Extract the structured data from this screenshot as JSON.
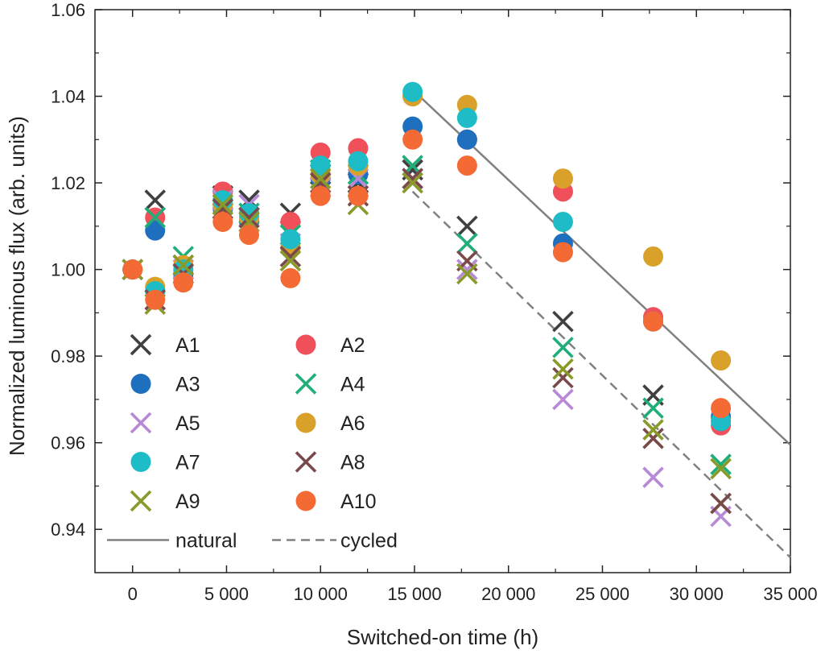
{
  "chart_data": {
    "type": "scatter",
    "title": "",
    "xlabel": "Switched-on time (h)",
    "ylabel": "Normalized luminous flux (arb. units)",
    "xlim": [
      -2000,
      35000
    ],
    "ylim": [
      0.93,
      1.06
    ],
    "x_ticks": [
      0,
      5000,
      10000,
      15000,
      20000,
      25000,
      30000,
      35000
    ],
    "x_tick_labels": [
      "0",
      "5 000",
      "10 000",
      "15 000",
      "20 000",
      "25 000",
      "30 000",
      "35 000"
    ],
    "y_ticks": [
      0.94,
      0.96,
      0.98,
      1.0,
      1.02,
      1.04,
      1.06
    ],
    "y_tick_labels": [
      "0.94",
      "0.96",
      "0.98",
      "1.00",
      "1.02",
      "1.04",
      "1.06"
    ],
    "grid": false,
    "legend_position": "bottom-left",
    "x": [
      0,
      1200,
      2700,
      4800,
      6200,
      8400,
      10000,
      12000,
      14900,
      17800,
      22900,
      27700,
      31300
    ],
    "series": [
      {
        "name": "A1",
        "marker": "x",
        "color": "#404040",
        "values": [
          1.0,
          1.016,
          1.001,
          1.017,
          1.016,
          1.013,
          1.022,
          1.02,
          1.023,
          1.01,
          0.988,
          0.971,
          0.946
        ]
      },
      {
        "name": "A2",
        "marker": "o",
        "color": "#f0505a",
        "values": [
          1.0,
          1.012,
          0.998,
          1.018,
          1.012,
          1.011,
          1.027,
          1.028,
          1.04,
          1.03,
          1.018,
          0.989,
          0.964
        ]
      },
      {
        "name": "A3",
        "marker": "o",
        "color": "#1f6fbf",
        "values": [
          1.0,
          1.009,
          0.999,
          1.014,
          1.011,
          1.005,
          1.021,
          1.022,
          1.033,
          1.03,
          1.006,
          0.988,
          0.966
        ]
      },
      {
        "name": "A4",
        "marker": "x",
        "color": "#1fae78",
        "values": [
          1.0,
          1.012,
          1.003,
          1.016,
          1.013,
          1.008,
          1.023,
          1.022,
          1.024,
          1.006,
          0.982,
          0.968,
          0.955
        ]
      },
      {
        "name": "A5",
        "marker": "x",
        "color": "#b88ad6",
        "values": [
          1.0,
          0.993,
          1.0,
          1.016,
          1.015,
          1.006,
          1.019,
          1.021,
          1.021,
          1.0,
          0.97,
          0.952,
          0.943
        ]
      },
      {
        "name": "A6",
        "marker": "o",
        "color": "#d9a02a",
        "values": [
          1.0,
          0.996,
          1.001,
          1.015,
          1.012,
          1.005,
          1.022,
          1.024,
          1.04,
          1.038,
          1.021,
          1.003,
          0.979
        ]
      },
      {
        "name": "A7",
        "marker": "o",
        "color": "#1dbcc6",
        "values": [
          1.0,
          0.995,
          1.0,
          1.016,
          1.013,
          1.007,
          1.024,
          1.025,
          1.041,
          1.035,
          1.011,
          0.988,
          0.965
        ]
      },
      {
        "name": "A8",
        "marker": "x",
        "color": "#7a4a4a",
        "values": [
          1.0,
          0.993,
          0.999,
          1.014,
          1.012,
          1.003,
          1.02,
          1.017,
          1.021,
          1.002,
          0.975,
          0.961,
          0.946
        ]
      },
      {
        "name": "A9",
        "marker": "x",
        "color": "#8a9a2a",
        "values": [
          1.0,
          0.992,
          1.001,
          1.015,
          1.011,
          1.002,
          1.021,
          1.015,
          1.02,
          0.999,
          0.977,
          0.963,
          0.954
        ]
      },
      {
        "name": "A10",
        "marker": "o",
        "color": "#f46a34",
        "values": [
          1.0,
          0.993,
          0.997,
          1.011,
          1.008,
          0.998,
          1.017,
          1.017,
          1.03,
          1.024,
          1.004,
          0.988,
          0.968
        ]
      }
    ],
    "fit_lines": [
      {
        "name": "natural",
        "style": "solid",
        "color": "#808080",
        "x": [
          14900,
          35000
        ],
        "y": [
          1.0415,
          0.9595
        ]
      },
      {
        "name": "cycled",
        "style": "dashed",
        "color": "#808080",
        "x": [
          14900,
          35000
        ],
        "y": [
          1.018,
          0.9335
        ]
      }
    ]
  }
}
